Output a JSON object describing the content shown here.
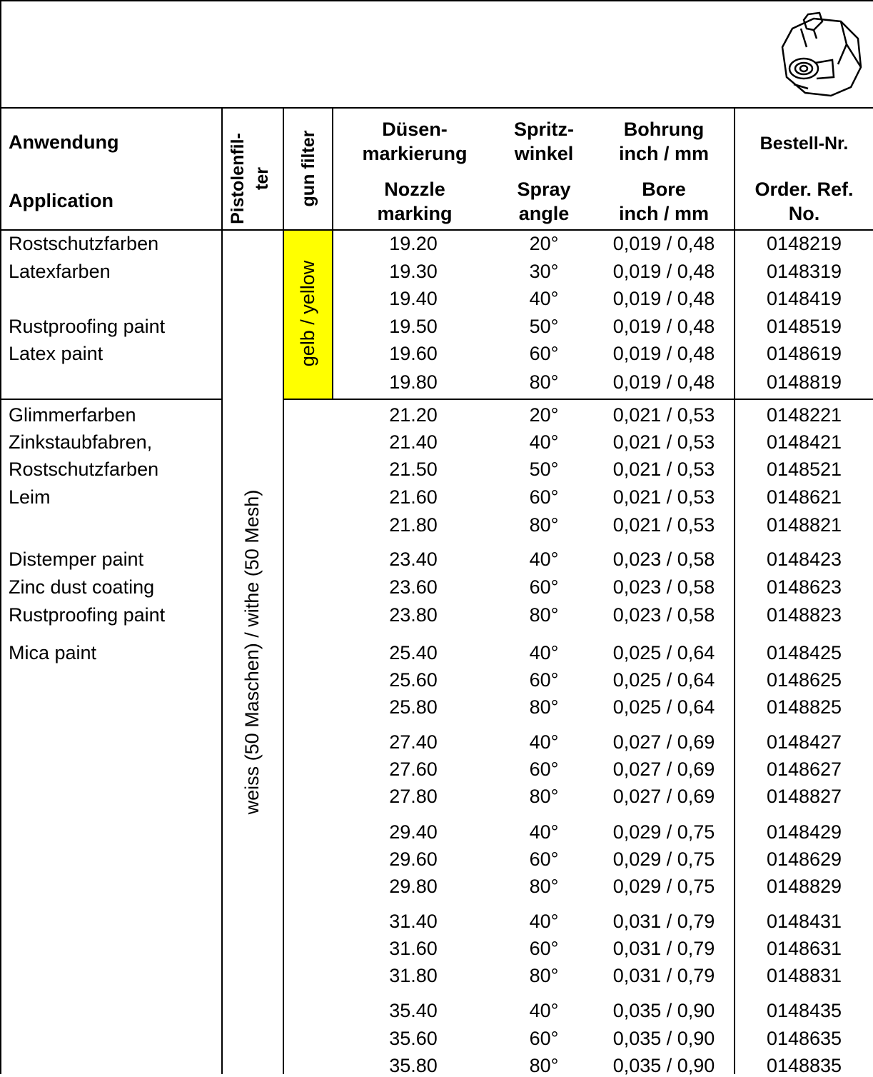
{
  "header": {
    "application_de": "Anwendung",
    "application_en": "Application",
    "gun_filter_de_line1": "Pistolenfil-",
    "gun_filter_de_line2": "ter",
    "gun_filter_en": "gun filter",
    "nozzle_de_line1": "Düsen-",
    "nozzle_de_line2": "markierung",
    "nozzle_en_line1": "Nozzle",
    "nozzle_en_line2": "marking",
    "angle_de_line1": "Spritz-",
    "angle_de_line2": "winkel",
    "angle_en_line1": "Spray",
    "angle_en_line2": "angle",
    "bore_de_line1": "Bohrung",
    "bore_de_line2": "inch / mm",
    "bore_en_line1": "Bore",
    "bore_en_line2": "inch / mm",
    "order_de": "Bestell-Nr.",
    "order_en_line1": "Order. Ref.",
    "order_en_line2": "No."
  },
  "filters": {
    "white_label": "weiss (50 Maschen) / withe (50 Mesh)",
    "yellow_label": "gelb / yellow"
  },
  "application_group_a": [
    "Rostschutzfarben",
    "Latexfarben",
    "",
    "Rustproofing paint",
    "Latex paint"
  ],
  "application_group_b": [
    "Glimmerfarben",
    "Zinkstaubfabren,",
    "Rostschutzfarben",
    "Leim",
    "",
    "Distemper paint",
    "Zinc dust coating",
    "Rustproofing paint",
    "Mica paint"
  ],
  "rows": [
    {
      "nozzle": "19.20",
      "angle": "20°",
      "bore": "0,019 / 0,48",
      "order": "0148219"
    },
    {
      "nozzle": "19.30",
      "angle": "30°",
      "bore": "0,019 / 0,48",
      "order": "0148319"
    },
    {
      "nozzle": "19.40",
      "angle": "40°",
      "bore": "0,019 / 0,48",
      "order": "0148419"
    },
    {
      "nozzle": "19.50",
      "angle": "50°",
      "bore": "0,019 / 0,48",
      "order": "0148519"
    },
    {
      "nozzle": "19.60",
      "angle": "60°",
      "bore": "0,019 / 0,48",
      "order": "0148619"
    },
    {
      "nozzle": "19.80",
      "angle": "80°",
      "bore": "0,019 / 0,48",
      "order": "0148819"
    },
    {
      "nozzle": "21.20",
      "angle": "20°",
      "bore": "0,021 / 0,53",
      "order": "0148221"
    },
    {
      "nozzle": "21.40",
      "angle": "40°",
      "bore": "0,021 / 0,53",
      "order": "0148421"
    },
    {
      "nozzle": "21.50",
      "angle": "50°",
      "bore": "0,021 / 0,53",
      "order": "0148521"
    },
    {
      "nozzle": "21.60",
      "angle": "60°",
      "bore": "0,021 / 0,53",
      "order": "0148621"
    },
    {
      "nozzle": "21.80",
      "angle": "80°",
      "bore": "0,021 / 0,53",
      "order": "0148821"
    },
    {
      "nozzle": "23.40",
      "angle": "40°",
      "bore": "0,023 / 0,58",
      "order": "0148423"
    },
    {
      "nozzle": "23.60",
      "angle": "60°",
      "bore": "0,023 / 0,58",
      "order": "0148623"
    },
    {
      "nozzle": "23.80",
      "angle": "80°",
      "bore": "0,023 / 0,58",
      "order": "0148823"
    },
    {
      "nozzle": "25.40",
      "angle": "40°",
      "bore": "0,025 / 0,64",
      "order": "0148425"
    },
    {
      "nozzle": "25.60",
      "angle": "60°",
      "bore": "0,025 / 0,64",
      "order": "0148625"
    },
    {
      "nozzle": "25.80",
      "angle": "80°",
      "bore": "0,025 / 0,64",
      "order": "0148825"
    },
    {
      "nozzle": "27.40",
      "angle": "40°",
      "bore": "0,027 / 0,69",
      "order": "0148427"
    },
    {
      "nozzle": "27.60",
      "angle": "60°",
      "bore": "0,027 / 0,69",
      "order": "0148627"
    },
    {
      "nozzle": "27.80",
      "angle": "80°",
      "bore": "0,027 / 0,69",
      "order": "0148827"
    },
    {
      "nozzle": "29.40",
      "angle": "40°",
      "bore": "0,029 / 0,75",
      "order": "0148429"
    },
    {
      "nozzle": "29.60",
      "angle": "60°",
      "bore": "0,029 / 0,75",
      "order": "0148629"
    },
    {
      "nozzle": "29.80",
      "angle": "80°",
      "bore": "0,029 / 0,75",
      "order": "0148829"
    },
    {
      "nozzle": "31.40",
      "angle": "40°",
      "bore": "0,031 / 0,79",
      "order": "0148431"
    },
    {
      "nozzle": "31.60",
      "angle": "60°",
      "bore": "0,031 / 0,79",
      "order": "0148631"
    },
    {
      "nozzle": "31.80",
      "angle": "80°",
      "bore": "0,031 / 0,79",
      "order": "0148831"
    },
    {
      "nozzle": "35.40",
      "angle": "40°",
      "bore": "0,035 / 0,90",
      "order": "0148435"
    },
    {
      "nozzle": "35.60",
      "angle": "60°",
      "bore": "0,035 / 0,90",
      "order": "0148635"
    },
    {
      "nozzle": "35.80",
      "angle": "80°",
      "bore": "0,035 / 0,90",
      "order": "0148835"
    }
  ],
  "colors": {
    "yellow_highlight": "#ffff00"
  },
  "icons": {
    "product": "nozzle-tip-icon"
  }
}
